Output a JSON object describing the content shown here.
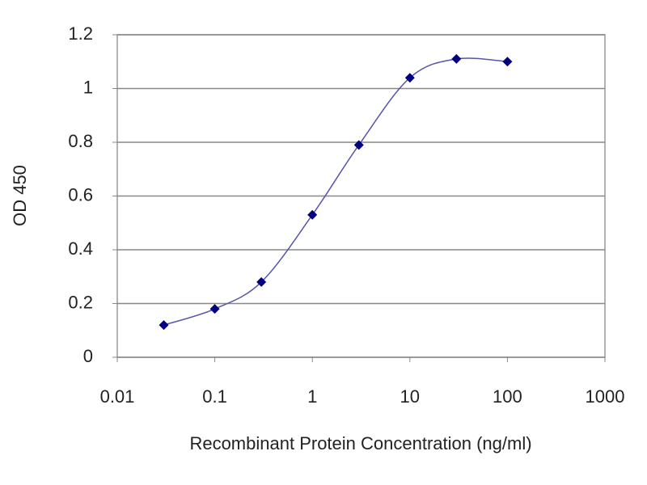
{
  "chart_data": {
    "type": "line",
    "x_label": "Recombinant Protein Concentration (ng/ml)",
    "y_label": "OD 450",
    "xscale": "log",
    "x": [
      0.03,
      0.1,
      0.3,
      1,
      3,
      10,
      30,
      100
    ],
    "series": [
      {
        "color": "#000080",
        "values": [
          0.12,
          0.18,
          0.28,
          0.53,
          0.79,
          1.04,
          1.11,
          1.1
        ]
      }
    ],
    "line_color": "#5555aa",
    "xlim": [
      0.01,
      1000
    ],
    "xticks": [
      0.01,
      0.1,
      1,
      10,
      100,
      1000
    ],
    "ylim": [
      0,
      1.2
    ],
    "yticks": [
      0,
      0.2,
      0.4,
      0.6,
      0.8,
      1,
      1.2
    ],
    "grid": true
  }
}
